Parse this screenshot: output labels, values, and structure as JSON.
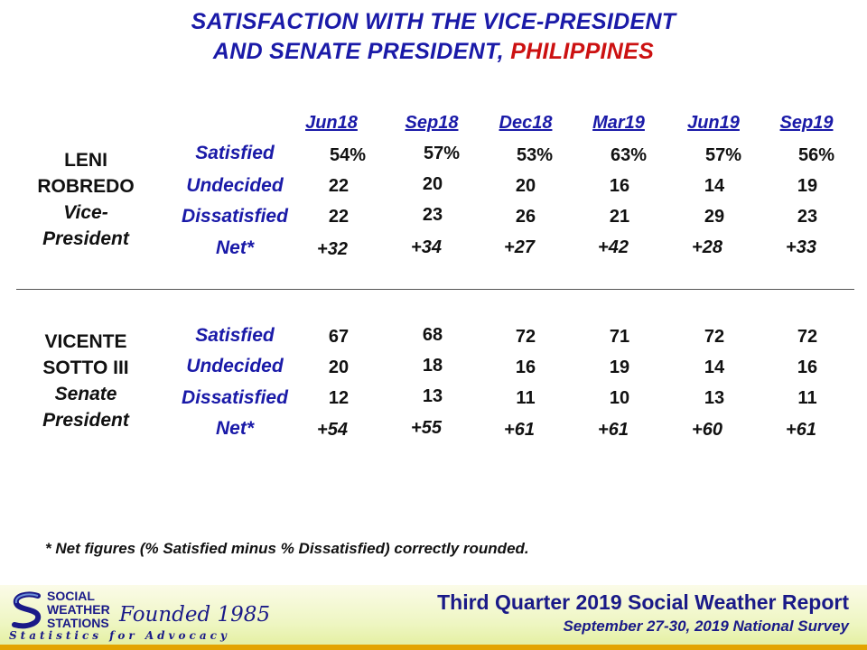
{
  "title": {
    "line1": "SATISFACTION  WITH THE VICE-PRESIDENT",
    "line2_main": "AND SENATE PRESIDENT,",
    "line2_red": "PHILIPPINES"
  },
  "columns": [
    "Jun18",
    "Sep18",
    "Dec18",
    "Mar19",
    "Jun19",
    "Sep19"
  ],
  "row_labels": [
    "Satisfied",
    "Undecided",
    "Dissatisfied",
    "Net*"
  ],
  "officials": [
    {
      "name_line1": "LENI",
      "name_line2": "ROBREDO",
      "position_line1": "Vice-",
      "position_line2": "President",
      "rows": [
        [
          "54%",
          "57%",
          "53%",
          "63%",
          "57%",
          "56%"
        ],
        [
          "22",
          "20",
          "20",
          "16",
          "14",
          "19"
        ],
        [
          "22",
          "23",
          "26",
          "21",
          "29",
          "23"
        ],
        [
          "+32",
          "+34",
          "+27",
          "+42",
          "+28",
          "+33"
        ]
      ]
    },
    {
      "name_line1": "VICENTE",
      "name_line2": "SOTTO III",
      "position_line1": "Senate",
      "position_line2": "President",
      "rows": [
        [
          "67",
          "68",
          "72",
          "71",
          "72",
          "72"
        ],
        [
          "20",
          "18",
          "16",
          "19",
          "14",
          "16"
        ],
        [
          "12",
          "13",
          "11",
          "10",
          "13",
          "11"
        ],
        [
          "+54",
          "+55",
          "+61",
          "+61",
          "+60",
          "+61"
        ]
      ]
    }
  ],
  "footnote": "* Net figures (% Satisfied minus % Dissatisfied) correctly rounded.",
  "footer": {
    "logo_line1": "SOCIAL",
    "logo_line2": "WEATHER",
    "logo_line3": "STATIONS",
    "logo_script": "Founded 1985",
    "logo_tagline": "Statistics for Advocacy",
    "report_title": "Third Quarter 2019 Social Weather Report",
    "report_subtitle": "September 27-30, 2019 National Survey"
  },
  "colors": {
    "title_blue": "#1a1aa8",
    "accent_red": "#cc1111",
    "footer_gold": "#e3a400"
  }
}
